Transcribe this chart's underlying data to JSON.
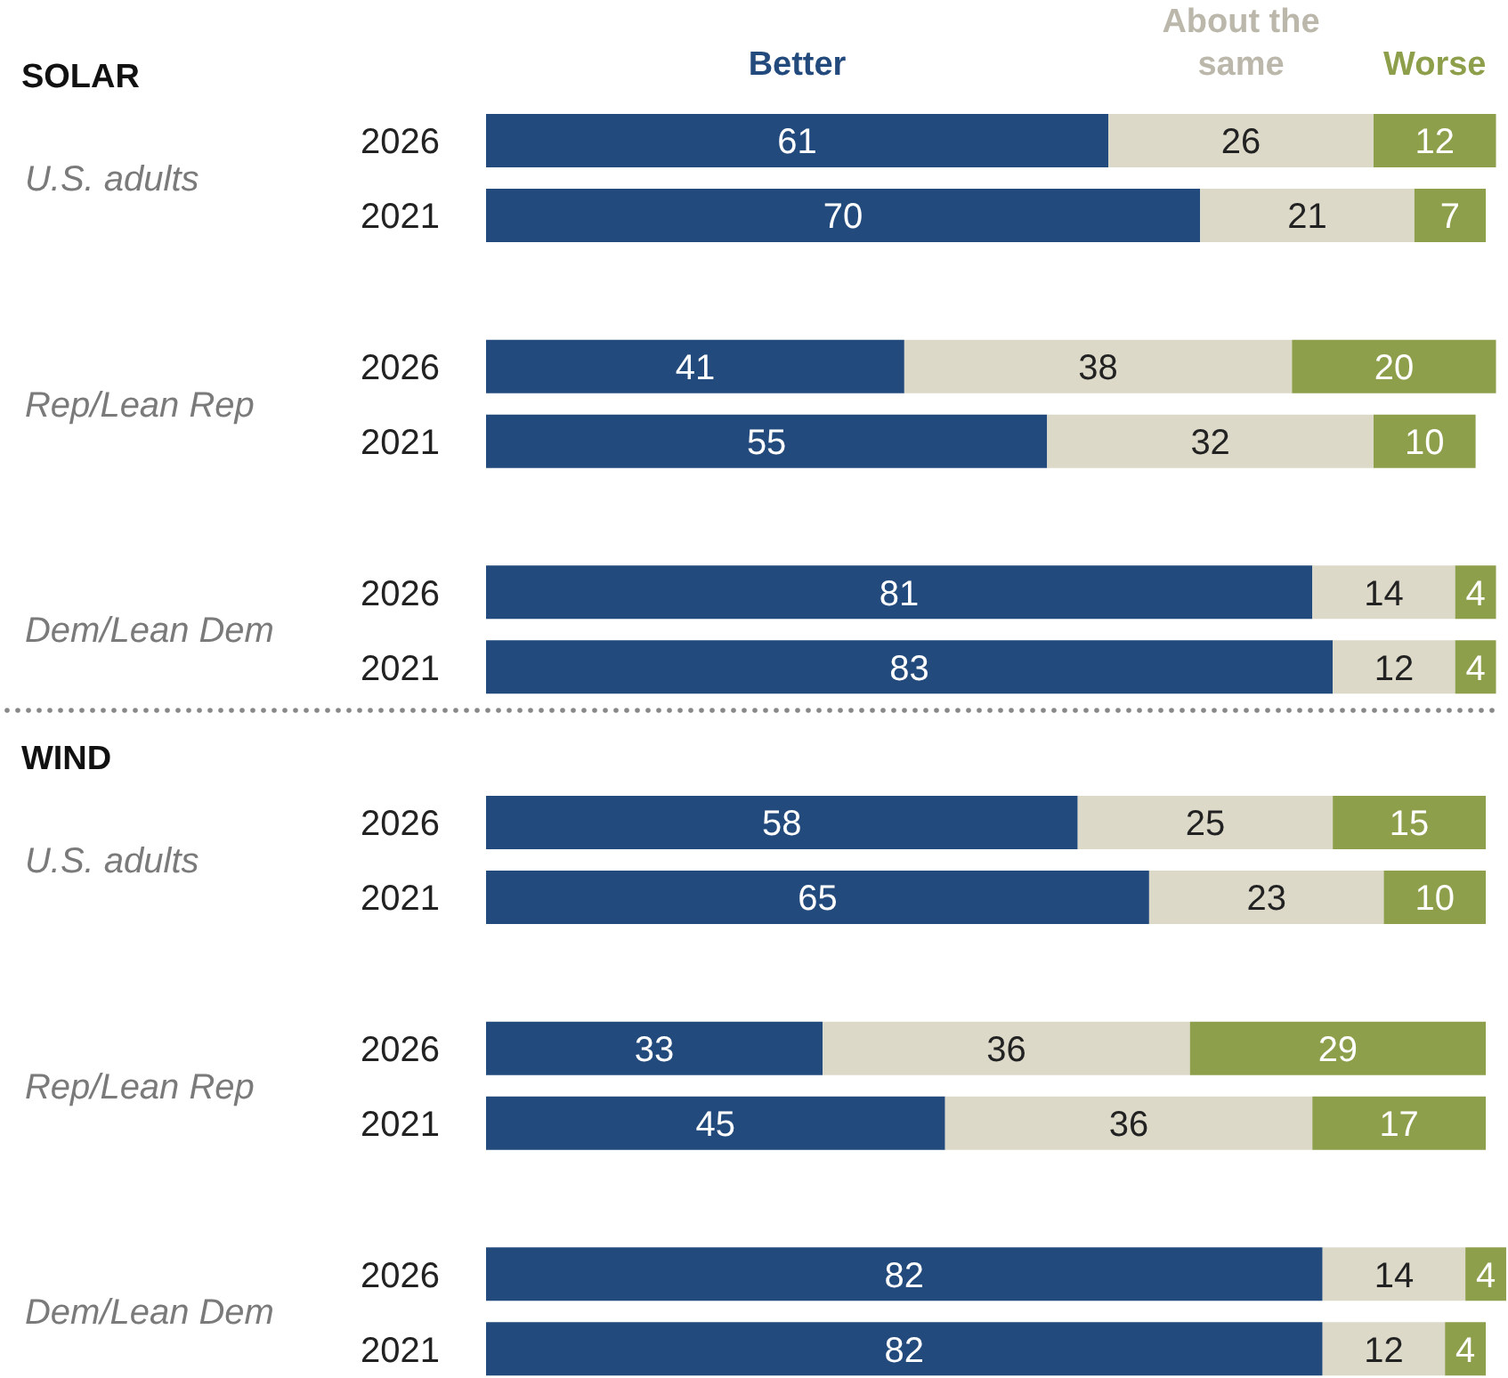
{
  "chart_data": [
    {
      "type": "bar",
      "orientation": "horizontal",
      "stacked": true,
      "categories": [
        "2026",
        "2021",
        "2026",
        "2021",
        "2026",
        "2021"
      ],
      "series": [
        {
          "name": "Better",
          "color": "#234a7c",
          "values": [
            61,
            70,
            41,
            55,
            81,
            83
          ]
        },
        {
          "name": "About the same",
          "color": "#dcd9c9",
          "values": [
            26,
            21,
            38,
            32,
            14,
            12
          ]
        },
        {
          "name": "Worse",
          "color": "#8e9f4b",
          "values": [
            12,
            7,
            20,
            10,
            4,
            4
          ]
        }
      ],
      "annotations": [
        "SOLAR",
        "U.S. adults",
        "Rep/Lean Rep",
        "Dem/Lean Dem"
      ],
      "xlim": [
        0,
        100
      ],
      "tick_labels": "y",
      "data_labels": true,
      "legend": "top",
      "grid": false
    },
    {
      "type": "bar",
      "orientation": "horizontal",
      "stacked": true,
      "categories": [
        "2026",
        "2021",
        "2026",
        "2021",
        "2026",
        "2021"
      ],
      "series": [
        {
          "color": "#234a7c",
          "values": [
            58,
            65,
            33,
            45,
            82,
            82
          ]
        },
        {
          "color": "#dcd9c9",
          "values": [
            25,
            23,
            36,
            36,
            14,
            12
          ]
        },
        {
          "color": "#8e9f4b",
          "values": [
            15,
            10,
            29,
            17,
            4,
            4
          ]
        }
      ],
      "annotations": [
        "WIND",
        "U.S. adults",
        "Rep/Lean Rep",
        "Dem/Lean Dem"
      ],
      "xlim": [
        0,
        100
      ],
      "tick_labels": "y",
      "data_labels": true,
      "grid": false
    }
  ]
}
